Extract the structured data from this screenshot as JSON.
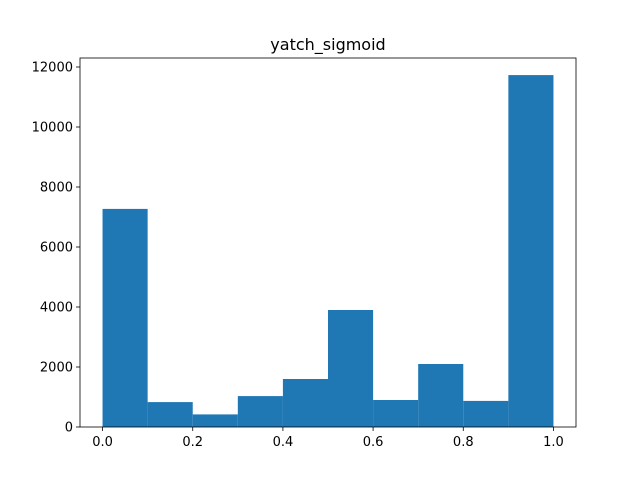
{
  "chart_data": {
    "type": "histogram",
    "title": "yatch_sigmoid",
    "bins": [
      0,
      0.1,
      0.2,
      0.3,
      0.4,
      0.5,
      0.6,
      0.7,
      0.8,
      0.9,
      1.0
    ],
    "values": [
      7270,
      830,
      420,
      1030,
      1600,
      3900,
      900,
      2100,
      870,
      11730
    ],
    "color": "#1f77b4",
    "xlim": [
      -0.05,
      1.05
    ],
    "xticks": [
      {
        "value": 0,
        "label": "0.0"
      },
      0.2,
      0.4,
      0.6,
      0.8,
      {
        "value": 1,
        "label": "1.0"
      }
    ],
    "ylim": [
      0,
      12300
    ],
    "yticks": [
      0,
      2000,
      4000,
      6000,
      8000,
      10000,
      12000
    ],
    "grid": false
  }
}
